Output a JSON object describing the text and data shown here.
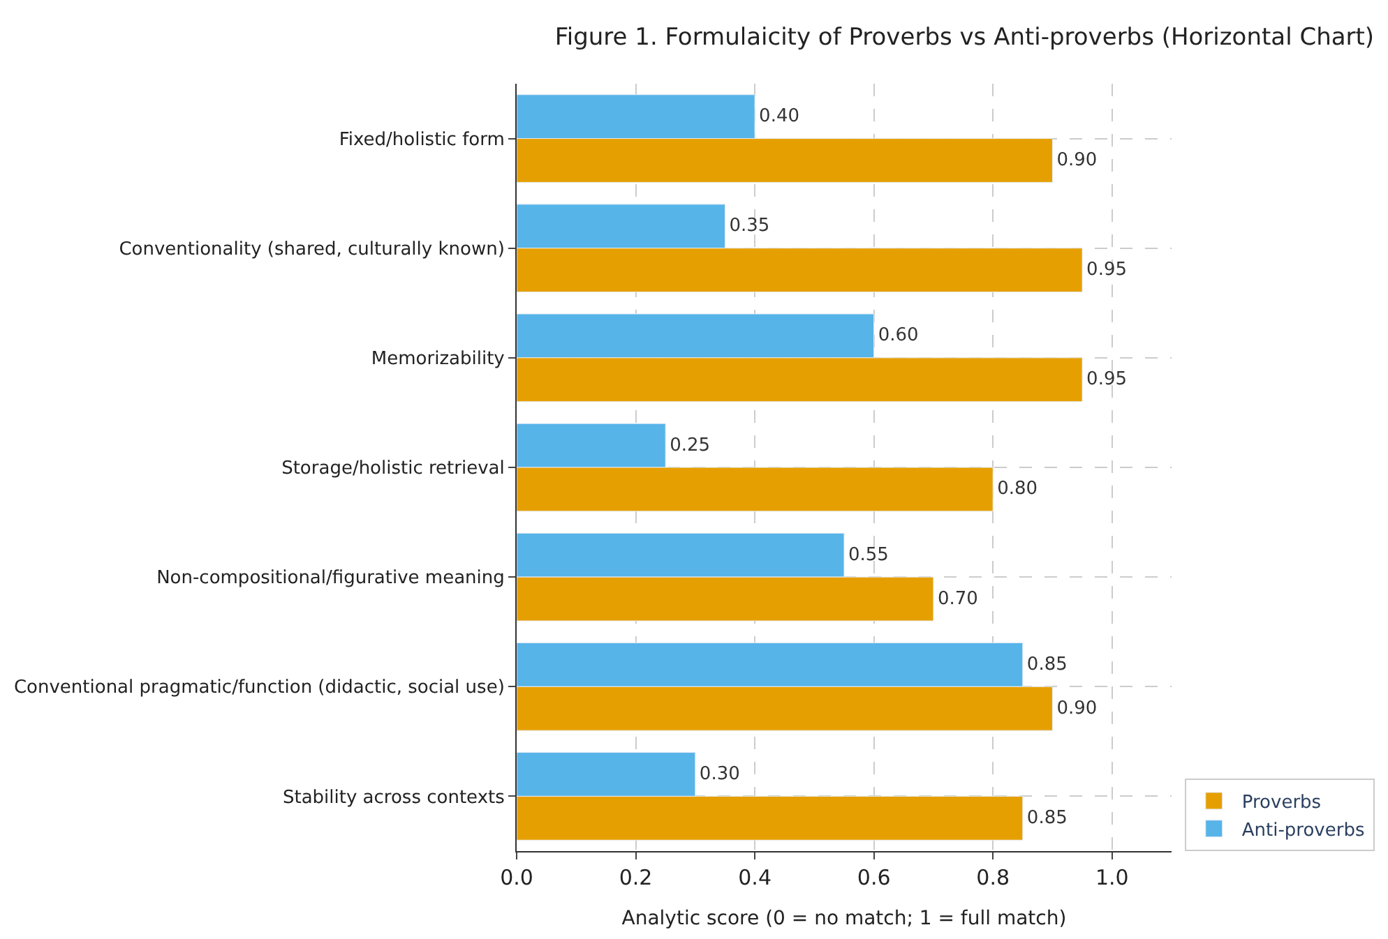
{
  "chart_data": {
    "type": "bar",
    "orientation": "horizontal",
    "title": "Figure 1. Formulaicity of Proverbs vs Anti-proverbs (Horizontal Chart)",
    "xlabel": "Analytic score (0 = no match; 1 = full match)",
    "categories": [
      "Fixed/holistic form",
      "Conventionality (shared, culturally known)",
      "Memorizability",
      "Storage/holistic retrieval",
      "Non-compositional/figurative meaning",
      "Conventional pragmatic/function (didactic, social use)",
      "Stability across contexts"
    ],
    "series": [
      {
        "name": "Proverbs",
        "color": "#e69f00",
        "values": [
          0.9,
          0.95,
          0.95,
          0.8,
          0.7,
          0.9,
          0.85
        ],
        "value_labels": [
          "0.90",
          "0.95",
          "0.95",
          "0.80",
          "0.70",
          "0.90",
          "0.85"
        ]
      },
      {
        "name": "Anti-proverbs",
        "color": "#56b4e9",
        "values": [
          0.4,
          0.35,
          0.6,
          0.25,
          0.55,
          0.85,
          0.3
        ],
        "value_labels": [
          "0.40",
          "0.35",
          "0.60",
          "0.25",
          "0.55",
          "0.85",
          "0.30"
        ]
      }
    ],
    "xlim": [
      0,
      1.1
    ],
    "xticks": [
      {
        "value": 0,
        "label": "0.0"
      },
      0.2,
      0.4,
      0.6,
      0.8,
      {
        "value": 1,
        "label": "1.0"
      }
    ],
    "grid": true,
    "legend": "bottom right"
  }
}
